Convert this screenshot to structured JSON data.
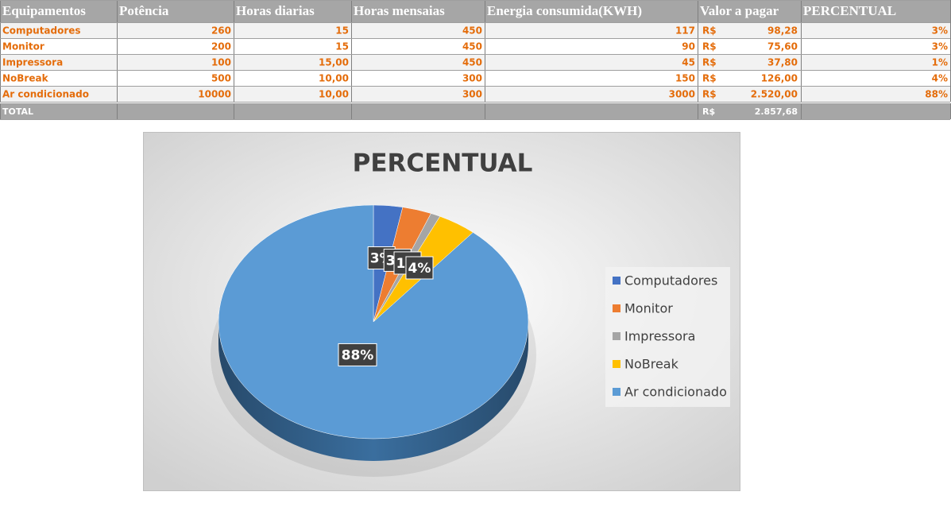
{
  "table": {
    "headers": [
      "Equipamentos",
      "Potência",
      "Horas diarias",
      "Horas mensaias",
      "Energia consumida(KWH)",
      "Valor a pagar",
      "PERCENTUAL"
    ],
    "rows": [
      [
        "Computadores",
        "260",
        "15",
        "450",
        "117",
        "R$",
        "98,28",
        "3%"
      ],
      [
        "Monitor",
        "200",
        "15",
        "450",
        "90",
        "R$",
        "75,60",
        "3%"
      ],
      [
        "Impressora",
        "100",
        "15,00",
        "450",
        "45",
        "R$",
        "37,80",
        "1%"
      ],
      [
        "NoBreak",
        "500",
        "10,00",
        "300",
        "150",
        "R$",
        "126,00",
        "4%"
      ],
      [
        "Ar condicionado",
        "10000",
        "10,00",
        "300",
        "3000",
        "R$",
        "2.520,00",
        "88%"
      ]
    ],
    "total": {
      "label": "TOTAL",
      "currency": "R$",
      "value": "2.857,68"
    }
  },
  "chart_data": {
    "type": "pie",
    "title": "PERCENTUAL",
    "categories": [
      "Computadores",
      "Monitor",
      "Impressora",
      "NoBreak",
      "Ar condicionado"
    ],
    "values": [
      3,
      3,
      1,
      4,
      88
    ],
    "value_labels": [
      "3%",
      "3%",
      "1%",
      "4%",
      "88%"
    ],
    "colors": [
      "#4472c4",
      "#ed7d31",
      "#a5a5a5",
      "#ffc000",
      "#5b9bd5"
    ],
    "legend": "right"
  }
}
